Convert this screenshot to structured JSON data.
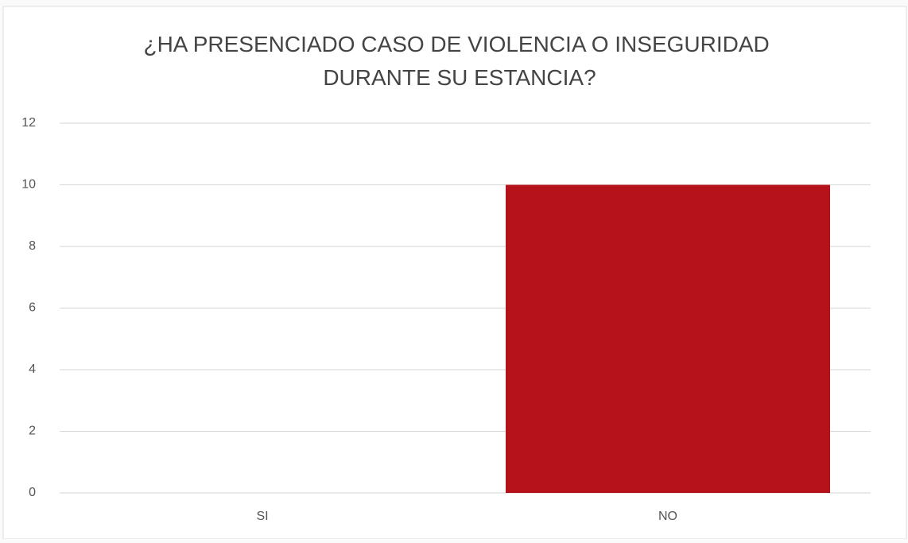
{
  "chart_data": {
    "type": "bar",
    "title": "¿HA PRESENCIADO CASO DE VIOLENCIA O INSEGURIDAD DURANTE SU ESTANCIA?",
    "categories": [
      "SI",
      "NO"
    ],
    "values": [
      0,
      10
    ],
    "color": "#b5121b",
    "ylim": [
      0,
      12
    ],
    "yticks": [
      0,
      2,
      4,
      6,
      8,
      10,
      12
    ],
    "grid": true
  }
}
